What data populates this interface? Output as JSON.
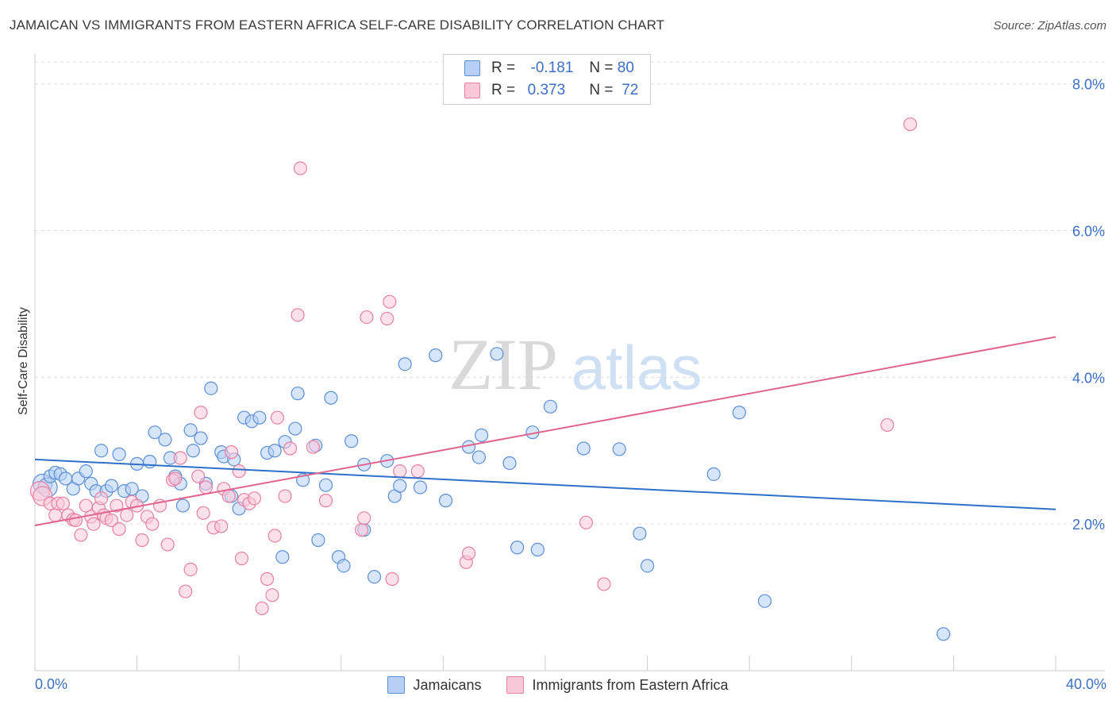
{
  "title": "JAMAICAN VS IMMIGRANTS FROM EASTERN AFRICA SELF-CARE DISABILITY CORRELATION CHART",
  "source": "Source: ZipAtlas.com",
  "watermark": {
    "zip": "ZIP",
    "atlas": "atlas"
  },
  "legend": {
    "r_label": "R =",
    "n_label": "N =",
    "rows": [
      {
        "r": "-0.181",
        "n": "80",
        "color": "#5b8fd8",
        "fill": "#b7cff5"
      },
      {
        "r": "0.373",
        "n": "72",
        "color": "#e87fa2",
        "fill": "#f9c8d8"
      }
    ]
  },
  "chart_data": {
    "type": "scatter",
    "xlabel": "",
    "ylabel": "Self-Care Disability",
    "xlim": [
      0,
      40
    ],
    "ylim": [
      0,
      8.3
    ],
    "x_tick_labels": [
      "0.0%",
      "40.0%"
    ],
    "y_ticks": [
      2,
      4,
      6,
      8
    ],
    "y_tick_labels": [
      "2.0%",
      "4.0%",
      "6.0%",
      "8.0%"
    ],
    "grid": true,
    "legend_position": "bottom",
    "series": [
      {
        "name": "Jamaicans",
        "color": "#5b8fd8",
        "fill": "#b7cff5",
        "trend": {
          "x": [
            0,
            40
          ],
          "y": [
            2.88,
            2.2
          ]
        },
        "points": [
          [
            0.3,
            2.55
          ],
          [
            0.5,
            2.5
          ],
          [
            0.6,
            2.65
          ],
          [
            0.8,
            2.7
          ],
          [
            1.0,
            2.68
          ],
          [
            1.2,
            2.62
          ],
          [
            1.5,
            2.48
          ],
          [
            1.7,
            2.62
          ],
          [
            2.0,
            2.72
          ],
          [
            2.2,
            2.55
          ],
          [
            2.4,
            2.45
          ],
          [
            2.6,
            3.0
          ],
          [
            2.8,
            2.45
          ],
          [
            3.0,
            2.52
          ],
          [
            3.3,
            2.95
          ],
          [
            3.5,
            2.45
          ],
          [
            3.8,
            2.48
          ],
          [
            4.0,
            2.82
          ],
          [
            4.2,
            2.38
          ],
          [
            4.5,
            2.85
          ],
          [
            4.7,
            3.25
          ],
          [
            5.1,
            3.15
          ],
          [
            5.3,
            2.9
          ],
          [
            5.5,
            2.65
          ],
          [
            5.7,
            2.55
          ],
          [
            5.8,
            2.25
          ],
          [
            6.1,
            3.28
          ],
          [
            6.2,
            3.0
          ],
          [
            6.5,
            3.17
          ],
          [
            6.7,
            2.55
          ],
          [
            6.9,
            3.85
          ],
          [
            7.3,
            2.98
          ],
          [
            7.4,
            2.92
          ],
          [
            7.7,
            2.38
          ],
          [
            7.8,
            2.88
          ],
          [
            8.0,
            2.21
          ],
          [
            8.2,
            3.45
          ],
          [
            8.5,
            3.4
          ],
          [
            8.8,
            3.45
          ],
          [
            9.1,
            2.97
          ],
          [
            9.4,
            3.0
          ],
          [
            9.7,
            1.55
          ],
          [
            9.8,
            3.12
          ],
          [
            10.2,
            3.3
          ],
          [
            10.3,
            3.78
          ],
          [
            10.5,
            2.6
          ],
          [
            11.0,
            3.07
          ],
          [
            11.1,
            1.78
          ],
          [
            11.4,
            2.53
          ],
          [
            11.6,
            3.72
          ],
          [
            11.9,
            1.55
          ],
          [
            12.1,
            1.43
          ],
          [
            12.4,
            3.13
          ],
          [
            12.9,
            2.81
          ],
          [
            12.9,
            1.92
          ],
          [
            13.3,
            1.28
          ],
          [
            13.8,
            2.86
          ],
          [
            14.1,
            2.38
          ],
          [
            14.3,
            2.52
          ],
          [
            14.5,
            4.18
          ],
          [
            15.1,
            2.5
          ],
          [
            15.7,
            4.3
          ],
          [
            16.1,
            2.32
          ],
          [
            17.0,
            3.05
          ],
          [
            17.4,
            2.91
          ],
          [
            17.5,
            3.21
          ],
          [
            18.1,
            4.32
          ],
          [
            18.6,
            2.83
          ],
          [
            18.9,
            1.68
          ],
          [
            19.5,
            3.25
          ],
          [
            19.7,
            1.65
          ],
          [
            20.2,
            3.6
          ],
          [
            21.5,
            3.03
          ],
          [
            22.9,
            3.02
          ],
          [
            23.7,
            1.87
          ],
          [
            24.0,
            1.43
          ],
          [
            26.6,
            2.68
          ],
          [
            27.6,
            3.52
          ],
          [
            28.6,
            0.95
          ],
          [
            35.6,
            0.5
          ]
        ]
      },
      {
        "name": "Immigrants from Eastern Africa",
        "color": "#e87fa2",
        "fill": "#f9c8d8",
        "trend": {
          "x": [
            0,
            40
          ],
          "y": [
            1.98,
            4.55
          ]
        },
        "points": [
          [
            0.2,
            2.45
          ],
          [
            0.3,
            2.38
          ],
          [
            0.6,
            2.28
          ],
          [
            0.8,
            2.12
          ],
          [
            0.9,
            2.28
          ],
          [
            1.1,
            2.28
          ],
          [
            1.3,
            2.12
          ],
          [
            1.5,
            2.06
          ],
          [
            1.6,
            2.05
          ],
          [
            1.8,
            1.85
          ],
          [
            2.0,
            2.25
          ],
          [
            2.2,
            2.1
          ],
          [
            2.3,
            2.0
          ],
          [
            2.5,
            2.22
          ],
          [
            2.6,
            2.35
          ],
          [
            2.7,
            2.12
          ],
          [
            2.8,
            2.08
          ],
          [
            3.0,
            2.05
          ],
          [
            3.2,
            2.25
          ],
          [
            3.3,
            1.93
          ],
          [
            3.6,
            2.12
          ],
          [
            3.8,
            2.3
          ],
          [
            4.0,
            2.25
          ],
          [
            4.2,
            1.78
          ],
          [
            4.4,
            2.1
          ],
          [
            4.6,
            2.0
          ],
          [
            4.9,
            2.25
          ],
          [
            5.2,
            1.72
          ],
          [
            5.4,
            2.6
          ],
          [
            5.5,
            2.62
          ],
          [
            5.7,
            2.9
          ],
          [
            5.9,
            1.08
          ],
          [
            6.1,
            1.38
          ],
          [
            6.4,
            2.65
          ],
          [
            6.5,
            3.52
          ],
          [
            6.6,
            2.15
          ],
          [
            6.7,
            2.5
          ],
          [
            7.0,
            1.95
          ],
          [
            7.3,
            1.97
          ],
          [
            7.4,
            2.48
          ],
          [
            7.6,
            2.38
          ],
          [
            7.7,
            2.98
          ],
          [
            8.0,
            2.72
          ],
          [
            8.1,
            1.53
          ],
          [
            8.2,
            2.33
          ],
          [
            8.4,
            2.28
          ],
          [
            8.6,
            2.35
          ],
          [
            8.9,
            0.85
          ],
          [
            9.1,
            1.25
          ],
          [
            9.3,
            1.03
          ],
          [
            9.4,
            1.84
          ],
          [
            9.5,
            3.45
          ],
          [
            9.8,
            2.38
          ],
          [
            10.0,
            3.03
          ],
          [
            10.3,
            4.85
          ],
          [
            10.4,
            6.85
          ],
          [
            10.9,
            3.05
          ],
          [
            11.4,
            2.32
          ],
          [
            12.8,
            1.92
          ],
          [
            12.9,
            2.08
          ],
          [
            13.0,
            4.82
          ],
          [
            13.8,
            4.8
          ],
          [
            13.9,
            5.03
          ],
          [
            14.0,
            1.25
          ],
          [
            14.3,
            2.72
          ],
          [
            15.0,
            2.72
          ],
          [
            16.9,
            1.48
          ],
          [
            17.0,
            1.6
          ],
          [
            21.6,
            2.02
          ],
          [
            22.3,
            1.18
          ],
          [
            33.4,
            3.35
          ],
          [
            34.3,
            7.45
          ]
        ]
      }
    ]
  }
}
